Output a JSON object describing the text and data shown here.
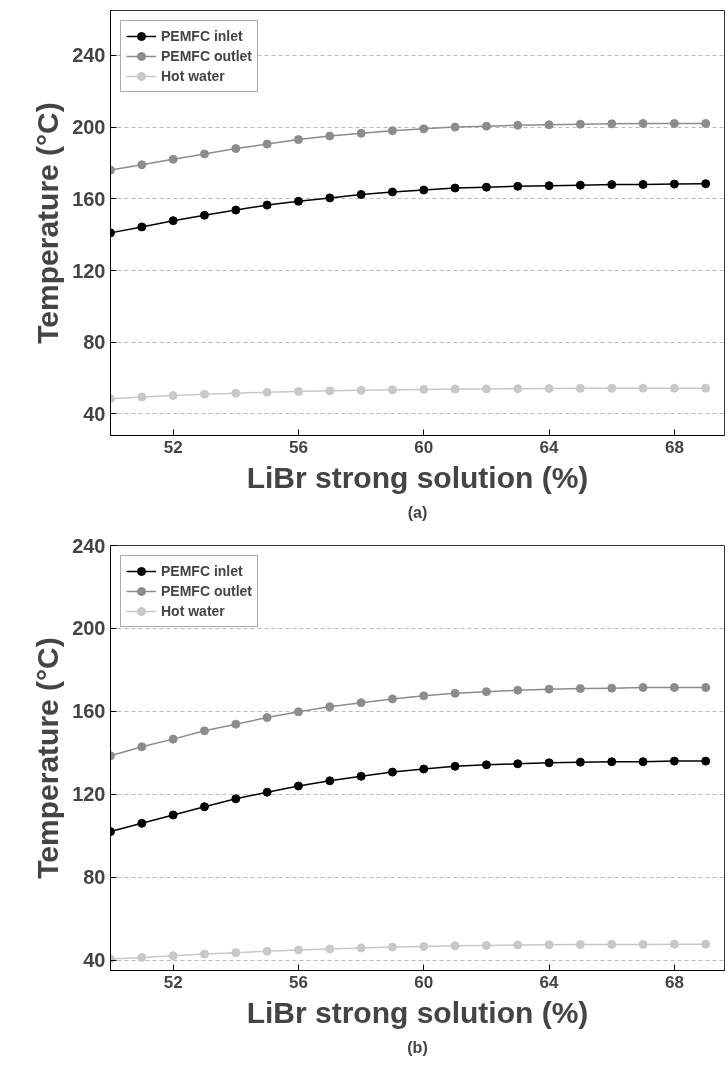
{
  "chart_data": [
    {
      "type": "line",
      "xlabel": "LiBr strong solution (%)",
      "ylabel": "Temperature (°C)",
      "annotations": [
        "(a)"
      ],
      "x": [
        50,
        51,
        52,
        53,
        54,
        55,
        56,
        57,
        58,
        59,
        60,
        61,
        62,
        63,
        64,
        65,
        66,
        67,
        68,
        69
      ],
      "xlim": [
        50,
        69.6
      ],
      "ylim": [
        28,
        265
      ],
      "xticks": [
        52,
        56,
        60,
        64,
        68
      ],
      "yticks": [
        40,
        80,
        120,
        160,
        200,
        240
      ],
      "grid": "y",
      "legend": "top left",
      "marker": "circle",
      "line_style": "solid",
      "series": [
        {
          "name": "PEMFC inlet",
          "color": "#000000",
          "values": [
            141,
            144.3,
            147.8,
            150.8,
            153.7,
            156.5,
            158.6,
            160.5,
            162.4,
            163.8,
            164.9,
            166,
            166.5,
            167,
            167.3,
            167.6,
            167.9,
            168,
            168.2,
            168.4
          ]
        },
        {
          "name": "PEMFC outlet",
          "color": "#8c8c8c",
          "values": [
            176,
            179,
            182,
            185,
            188,
            190.5,
            193,
            195,
            196.5,
            198,
            199,
            200,
            200.5,
            201,
            201.3,
            201.6,
            201.8,
            202,
            202,
            202
          ]
        },
        {
          "name": "Hot water",
          "color": "#c8c8c8",
          "values": [
            48.5,
            49.5,
            50.3,
            51,
            51.6,
            52.1,
            52.5,
            52.9,
            53.2,
            53.5,
            53.7,
            53.9,
            54,
            54.1,
            54.2,
            54.3,
            54.3,
            54.4,
            54.4,
            54.4
          ]
        }
      ]
    },
    {
      "type": "line",
      "xlabel": "LiBr strong solution (%)",
      "ylabel": "Temperature (°C)",
      "annotations": [
        "(b)"
      ],
      "x": [
        50,
        51,
        52,
        53,
        54,
        55,
        56,
        57,
        58,
        59,
        60,
        61,
        62,
        63,
        64,
        65,
        66,
        67,
        68,
        69
      ],
      "xlim": [
        50,
        69.6
      ],
      "ylim": [
        35,
        240
      ],
      "xticks": [
        52,
        56,
        60,
        64,
        68
      ],
      "yticks": [
        40,
        80,
        120,
        160,
        200,
        240
      ],
      "grid": "y",
      "legend": "top left",
      "marker": "circle",
      "line_style": "solid",
      "series": [
        {
          "name": "PEMFC inlet",
          "color": "#000000",
          "values": [
            102,
            106,
            110,
            114,
            117.8,
            121,
            124,
            126.5,
            128.7,
            130.7,
            132.2,
            133.5,
            134.2,
            134.7,
            135.2,
            135.5,
            135.7,
            135.7,
            136,
            136
          ]
        },
        {
          "name": "PEMFC outlet",
          "color": "#8c8c8c",
          "values": [
            138.6,
            142.9,
            146.6,
            150.6,
            153.8,
            157,
            159.8,
            162.2,
            164.2,
            166,
            167.5,
            168.7,
            169.5,
            170.2,
            170.7,
            171,
            171.2,
            171.5,
            171.5,
            171.5
          ]
        },
        {
          "name": "Hot water",
          "color": "#c8c8c8",
          "values": [
            40.5,
            41.3,
            42.1,
            42.9,
            43.6,
            44.3,
            44.9,
            45.4,
            45.9,
            46.3,
            46.6,
            46.9,
            47.1,
            47.3,
            47.4,
            47.5,
            47.6,
            47.6,
            47.7,
            47.7
          ]
        }
      ]
    }
  ]
}
